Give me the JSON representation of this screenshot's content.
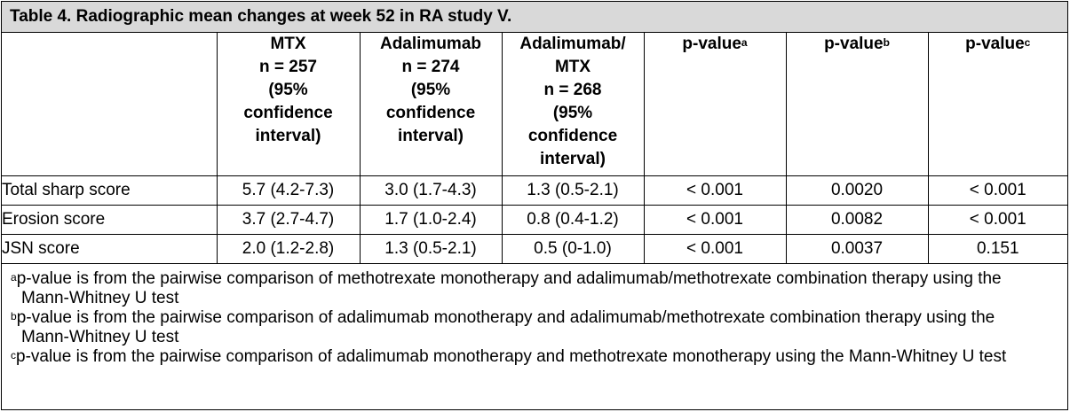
{
  "table": {
    "title": "Table 4. Radiographic mean changes at week 52 in RA study V.",
    "columns": [
      {
        "lines": [
          "MTX",
          "n = 257",
          "(95%",
          "confidence",
          "interval)"
        ]
      },
      {
        "lines": [
          "Adalimumab",
          "n = 274",
          "(95%",
          "confidence",
          "interval)"
        ]
      },
      {
        "lines": [
          "Adalimumab/",
          "MTX",
          "n = 268",
          "(95%",
          "confidence",
          "interval)"
        ]
      },
      {
        "label": "p-value",
        "sup": "a"
      },
      {
        "label": "p-value",
        "sup": "b"
      },
      {
        "label": "p-value",
        "sup": "c"
      }
    ],
    "rows": [
      {
        "label": "Total sharp score",
        "values": [
          "5.7 (4.2-7.3)",
          "3.0 (1.7-4.3)",
          "1.3 (0.5-2.1)",
          "< 0.001",
          "0.0020",
          "< 0.001"
        ]
      },
      {
        "label": "Erosion score",
        "values": [
          "3.7 (2.7-4.7)",
          "1.7 (1.0-2.4)",
          "0.8 (0.4-1.2)",
          "< 0.001",
          "0.0082",
          "< 0.001"
        ]
      },
      {
        "label": "JSN score",
        "values": [
          "2.0 (1.2-2.8)",
          "1.3 (0.5-2.1)",
          "0.5 (0-1.0)",
          "< 0.001",
          "0.0037",
          "0.151"
        ]
      }
    ],
    "footnotes": [
      {
        "sup": "a",
        "text": "p-value is from the pairwise comparison of methotrexate monotherapy and adalimumab/methotrexate combination therapy using the Mann-Whitney U test"
      },
      {
        "sup": "b",
        "text": "p-value is from the pairwise comparison of adalimumab monotherapy and adalimumab/methotrexate combination therapy using the Mann-Whitney U test"
      },
      {
        "sup": "c",
        "text": "p-value is from the pairwise comparison of adalimumab monotherapy and methotrexate monotherapy using the Mann-Whitney U test"
      }
    ]
  }
}
